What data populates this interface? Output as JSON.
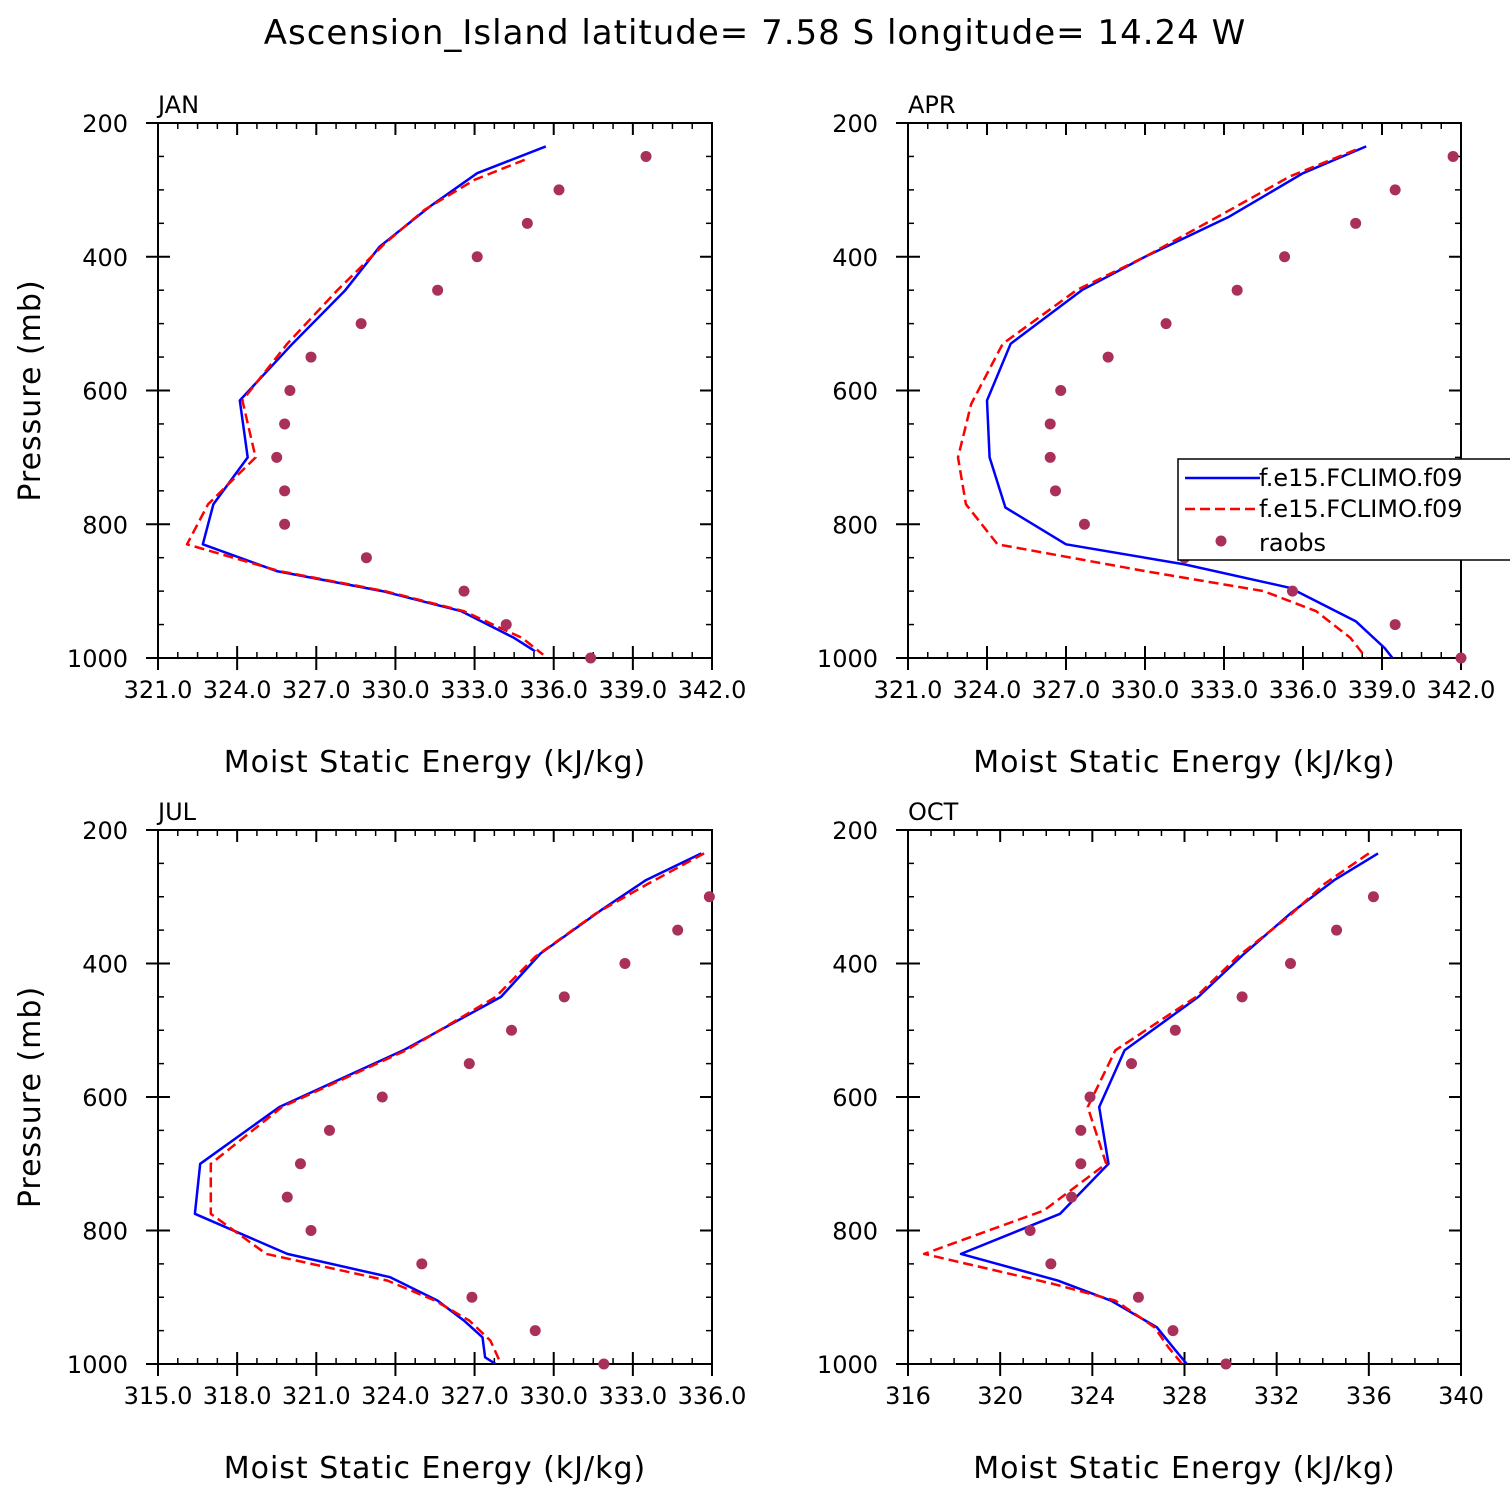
{
  "title": "Ascension_Island  latitude= 7.58 S longitude= 14.24 W",
  "colors": {
    "model1": "#0000ff",
    "model2": "#ff0000",
    "raobs": "#a8305a",
    "axis": "#000000"
  },
  "legend": {
    "entries": [
      "f.e15.FCLIMO.f09",
      "f.e15.FCLIMO.f09",
      "raobs"
    ]
  },
  "chart_data": [
    {
      "type": "line",
      "panel": "JAN",
      "title": "JAN",
      "xlabel": "Moist Static Energy (kJ/kg)",
      "ylabel": "Pressure (mb)",
      "xlim": [
        321,
        342
      ],
      "ylim": [
        1000,
        200
      ],
      "xticks": [
        321,
        324,
        327,
        330,
        333,
        336,
        339,
        342
      ],
      "xtick_labels": [
        "321.0",
        "324.0",
        "327.0",
        "330.0",
        "333.0",
        "336.0",
        "339.0",
        "342.0"
      ],
      "yticks": [
        200,
        400,
        600,
        800,
        1000
      ],
      "ytick_labels": [
        "200",
        "400",
        "600",
        "800",
        "1000"
      ],
      "series": [
        {
          "style": "solid",
          "points": [
            [
              335.7,
              235
            ],
            [
              333.1,
              275
            ],
            [
              331.3,
              325
            ],
            [
              329.4,
              385
            ],
            [
              328.1,
              450
            ],
            [
              326.1,
              530
            ],
            [
              324.1,
              615
            ],
            [
              324.4,
              700
            ],
            [
              323.1,
              770
            ],
            [
              322.7,
              830
            ],
            [
              325.5,
              870
            ],
            [
              329.5,
              900
            ],
            [
              332.5,
              930
            ],
            [
              334.5,
              970
            ],
            [
              335.3,
              990
            ]
          ]
        },
        {
          "style": "dashed",
          "points": [
            [
              334.9,
              255
            ],
            [
              333.0,
              285
            ],
            [
              331.1,
              330
            ],
            [
              329.6,
              380
            ],
            [
              327.8,
              450
            ],
            [
              325.9,
              530
            ],
            [
              324.2,
              615
            ],
            [
              324.7,
              700
            ],
            [
              322.9,
              770
            ],
            [
              322.1,
              830
            ],
            [
              325.6,
              870
            ],
            [
              329.6,
              900
            ],
            [
              332.6,
              930
            ],
            [
              334.8,
              970
            ],
            [
              335.6,
              995
            ]
          ]
        },
        {
          "style": "markers",
          "points": [
            [
              339.5,
              250
            ],
            [
              336.2,
              300
            ],
            [
              335.0,
              350
            ],
            [
              333.1,
              400
            ],
            [
              331.6,
              450
            ],
            [
              328.7,
              500
            ],
            [
              326.8,
              550
            ],
            [
              326.0,
              600
            ],
            [
              325.8,
              650
            ],
            [
              325.5,
              700
            ],
            [
              325.8,
              750
            ],
            [
              325.8,
              800
            ],
            [
              328.9,
              850
            ],
            [
              332.6,
              900
            ],
            [
              334.2,
              950
            ],
            [
              337.4,
              1000
            ]
          ]
        }
      ]
    },
    {
      "type": "line",
      "panel": "APR",
      "title": "APR",
      "xlabel": "Moist Static Energy (kJ/kg)",
      "ylabel": "",
      "xlim": [
        321,
        342
      ],
      "ylim": [
        1000,
        200
      ],
      "xticks": [
        321,
        324,
        327,
        330,
        333,
        336,
        339,
        342
      ],
      "xtick_labels": [
        "321.0",
        "324.0",
        "327.0",
        "330.0",
        "333.0",
        "336.0",
        "339.0",
        "342.0"
      ],
      "yticks": [
        200,
        400,
        600,
        800,
        1000
      ],
      "ytick_labels": [
        "200",
        "400",
        "600",
        "800",
        "1000"
      ],
      "series": [
        {
          "style": "solid",
          "points": [
            [
              338.4,
              235
            ],
            [
              336.0,
              275
            ],
            [
              333.2,
              340
            ],
            [
              330.0,
              400
            ],
            [
              327.6,
              450
            ],
            [
              324.9,
              530
            ],
            [
              324.0,
              615
            ],
            [
              324.1,
              700
            ],
            [
              324.7,
              775
            ],
            [
              327.0,
              830
            ],
            [
              331.5,
              860
            ],
            [
              335.5,
              895
            ],
            [
              338.0,
              945
            ],
            [
              339.1,
              985
            ],
            [
              339.4,
              1000
            ]
          ]
        },
        {
          "style": "dashed",
          "points": [
            [
              338.0,
              240
            ],
            [
              335.5,
              280
            ],
            [
              333.0,
              335
            ],
            [
              330.0,
              400
            ],
            [
              327.4,
              450
            ],
            [
              324.6,
              530
            ],
            [
              323.4,
              620
            ],
            [
              322.9,
              700
            ],
            [
              323.2,
              770
            ],
            [
              324.4,
              830
            ],
            [
              330.0,
              870
            ],
            [
              334.5,
              900
            ],
            [
              336.5,
              930
            ],
            [
              337.8,
              970
            ],
            [
              338.4,
              1000
            ]
          ]
        },
        {
          "style": "markers",
          "points": [
            [
              341.7,
              250
            ],
            [
              339.5,
              300
            ],
            [
              338.0,
              350
            ],
            [
              335.3,
              400
            ],
            [
              333.5,
              450
            ],
            [
              330.8,
              500
            ],
            [
              328.6,
              550
            ],
            [
              326.8,
              600
            ],
            [
              326.4,
              650
            ],
            [
              326.4,
              700
            ],
            [
              326.6,
              750
            ],
            [
              327.7,
              800
            ],
            [
              331.5,
              850
            ],
            [
              335.6,
              900
            ],
            [
              339.5,
              950
            ],
            [
              342.0,
              1000
            ]
          ]
        }
      ]
    },
    {
      "type": "line",
      "panel": "JUL",
      "title": "JUL",
      "xlabel": "Moist Static Energy (kJ/kg)",
      "ylabel": "Pressure (mb)",
      "xlim": [
        315,
        336
      ],
      "ylim": [
        1000,
        200
      ],
      "xticks": [
        315,
        318,
        321,
        324,
        327,
        330,
        333,
        336
      ],
      "xtick_labels": [
        "315.0",
        "318.0",
        "321.0",
        "324.0",
        "327.0",
        "330.0",
        "333.0",
        "336.0"
      ],
      "yticks": [
        200,
        400,
        600,
        800,
        1000
      ],
      "ytick_labels": [
        "200",
        "400",
        "600",
        "800",
        "1000"
      ],
      "series": [
        {
          "style": "solid",
          "points": [
            [
              335.6,
              235
            ],
            [
              333.5,
              275
            ],
            [
              331.8,
              320
            ],
            [
              329.5,
              385
            ],
            [
              328.0,
              450
            ],
            [
              324.3,
              530
            ],
            [
              319.6,
              615
            ],
            [
              316.6,
              700
            ],
            [
              316.4,
              775
            ],
            [
              319.9,
              835
            ],
            [
              323.8,
              870
            ],
            [
              325.6,
              905
            ],
            [
              326.6,
              935
            ],
            [
              327.3,
              960
            ],
            [
              327.4,
              990
            ],
            [
              327.8,
              1000
            ]
          ]
        },
        {
          "style": "dashed",
          "points": [
            [
              335.7,
              235
            ],
            [
              333.6,
              280
            ],
            [
              331.6,
              325
            ],
            [
              329.3,
              390
            ],
            [
              327.8,
              450
            ],
            [
              324.4,
              530
            ],
            [
              319.7,
              615
            ],
            [
              317.0,
              700
            ],
            [
              317.0,
              775
            ],
            [
              319.1,
              835
            ],
            [
              323.7,
              875
            ],
            [
              325.5,
              905
            ],
            [
              326.8,
              935
            ],
            [
              327.6,
              965
            ],
            [
              328.0,
              1000
            ]
          ]
        },
        {
          "style": "markers",
          "points": [
            [
              335.9,
              300
            ],
            [
              334.7,
              350
            ],
            [
              332.7,
              400
            ],
            [
              330.4,
              450
            ],
            [
              328.4,
              500
            ],
            [
              326.8,
              550
            ],
            [
              323.5,
              600
            ],
            [
              321.5,
              650
            ],
            [
              320.4,
              700
            ],
            [
              319.9,
              750
            ],
            [
              320.8,
              800
            ],
            [
              325.0,
              850
            ],
            [
              326.9,
              900
            ],
            [
              329.3,
              950
            ],
            [
              331.9,
              1000
            ]
          ]
        }
      ]
    },
    {
      "type": "line",
      "panel": "OCT",
      "title": "OCT",
      "xlabel": "Moist Static Energy (kJ/kg)",
      "ylabel": "",
      "xlim": [
        316,
        340
      ],
      "ylim": [
        1000,
        200
      ],
      "xticks": [
        316,
        320,
        324,
        328,
        332,
        336,
        340
      ],
      "xtick_labels": [
        "316",
        "320",
        "324",
        "328",
        "332",
        "336",
        "340"
      ],
      "yticks": [
        200,
        400,
        600,
        800,
        1000
      ],
      "ytick_labels": [
        "200",
        "400",
        "600",
        "800",
        "1000"
      ],
      "series": [
        {
          "style": "solid",
          "points": [
            [
              336.4,
              235
            ],
            [
              334.5,
              275
            ],
            [
              332.6,
              325
            ],
            [
              330.6,
              385
            ],
            [
              328.6,
              450
            ],
            [
              325.4,
              530
            ],
            [
              324.3,
              615
            ],
            [
              324.7,
              700
            ],
            [
              322.6,
              775
            ],
            [
              318.3,
              835
            ],
            [
              322.5,
              875
            ],
            [
              324.8,
              905
            ],
            [
              326.8,
              945
            ],
            [
              327.5,
              975
            ],
            [
              328.1,
              1000
            ]
          ]
        },
        {
          "style": "dashed",
          "points": [
            [
              336.0,
              235
            ],
            [
              334.1,
              280
            ],
            [
              332.5,
              330
            ],
            [
              330.3,
              390
            ],
            [
              328.5,
              450
            ],
            [
              325.0,
              530
            ],
            [
              323.8,
              615
            ],
            [
              324.6,
              700
            ],
            [
              321.9,
              770
            ],
            [
              316.7,
              835
            ],
            [
              322.3,
              880
            ],
            [
              325.0,
              905
            ],
            [
              326.7,
              945
            ],
            [
              327.3,
              975
            ],
            [
              327.9,
              1000
            ]
          ]
        },
        {
          "style": "markers",
          "points": [
            [
              336.2,
              300
            ],
            [
              334.6,
              350
            ],
            [
              332.6,
              400
            ],
            [
              330.5,
              450
            ],
            [
              327.6,
              500
            ],
            [
              325.7,
              550
            ],
            [
              323.9,
              600
            ],
            [
              323.5,
              650
            ],
            [
              323.5,
              700
            ],
            [
              323.1,
              750
            ],
            [
              321.3,
              800
            ],
            [
              322.2,
              850
            ],
            [
              326.0,
              900
            ],
            [
              327.5,
              950
            ],
            [
              329.8,
              1000
            ]
          ]
        }
      ]
    }
  ]
}
